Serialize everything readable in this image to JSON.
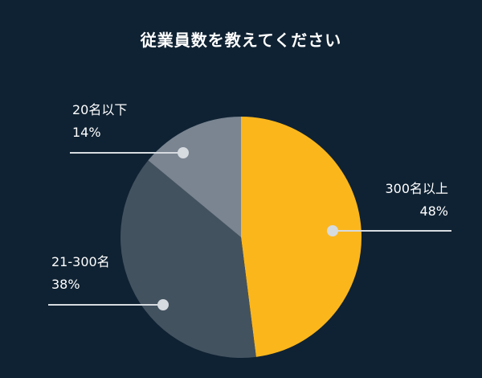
{
  "title": "従業員数を教えてください",
  "chart_data": {
    "type": "pie",
    "title": "従業員数を教えてください",
    "slices": [
      {
        "label": "300名以上",
        "value": 48,
        "value_label": "48%",
        "color": "#fbb61c"
      },
      {
        "label": "21-300名",
        "value": 38,
        "value_label": "38%",
        "color": "#43525f"
      },
      {
        "label": "20名以下",
        "value": 14,
        "value_label": "14%",
        "color": "#7a8591"
      }
    ],
    "start_angle": "12 o'clock",
    "direction": "clockwise",
    "legend": "none",
    "callout_line_color": "#d6dbe0"
  }
}
